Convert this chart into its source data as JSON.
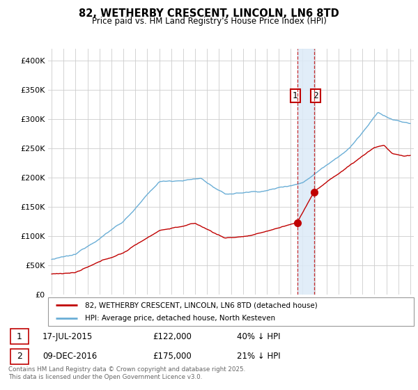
{
  "title": "82, WETHERBY CRESCENT, LINCOLN, LN6 8TD",
  "subtitle": "Price paid vs. HM Land Registry's House Price Index (HPI)",
  "ylim": [
    0,
    420000
  ],
  "yticks": [
    0,
    50000,
    100000,
    150000,
    200000,
    250000,
    300000,
    350000,
    400000
  ],
  "ytick_labels": [
    "£0",
    "£50K",
    "£100K",
    "£150K",
    "£200K",
    "£250K",
    "£300K",
    "£350K",
    "£400K"
  ],
  "hpi_color": "#6aaed6",
  "price_color": "#c00000",
  "marker1_date": 2015.54,
  "marker2_date": 2016.94,
  "marker1_price": 122000,
  "marker2_price": 175000,
  "annotation1": [
    "1",
    "17-JUL-2015",
    "£122,000",
    "40% ↓ HPI"
  ],
  "annotation2": [
    "2",
    "09-DEC-2016",
    "£175,000",
    "21% ↓ HPI"
  ],
  "legend_line1": "82, WETHERBY CRESCENT, LINCOLN, LN6 8TD (detached house)",
  "legend_line2": "HPI: Average price, detached house, North Kesteven",
  "footer": "Contains HM Land Registry data © Crown copyright and database right 2025.\nThis data is licensed under the Open Government Licence v3.0.",
  "bg_color": "#ffffff",
  "grid_color": "#cccccc",
  "span_color": "#dceaf7",
  "xlim_left": 1994.7,
  "xlim_right": 2025.3
}
